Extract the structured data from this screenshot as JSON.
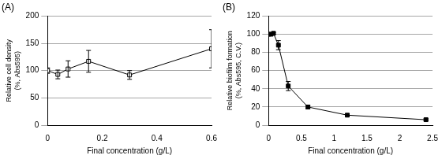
{
  "chart_data": [
    {
      "type": "line",
      "title": "(A)",
      "xlabel": "Final concentration (g/L)",
      "ylabel": [
        "Relative cell density",
        "(%, Abs595)"
      ],
      "x": [
        0,
        0.0375,
        0.075,
        0.15,
        0.3,
        0.6
      ],
      "series": [
        {
          "color": "#000000",
          "marker": "square_open",
          "values": [
            100,
            93,
            103,
            117,
            92,
            140
          ],
          "errors": [
            5,
            8,
            15,
            20,
            8,
            35
          ]
        }
      ],
      "xlim": [
        0,
        0.6
      ],
      "xticks": [
        0,
        0.2,
        0.4,
        0.6
      ],
      "ylim": [
        0,
        200
      ],
      "yticks": [
        0,
        50,
        100,
        150,
        200
      ],
      "grid": true
    },
    {
      "type": "line",
      "title": "(B)",
      "xlabel": "Final concentration (g/L)",
      "ylabel": [
        "Relative biofilm formation",
        "(%, Abs595, C.V.)"
      ],
      "x": [
        0,
        0.0375,
        0.075,
        0.15,
        0.3,
        0.6,
        1.2,
        2.4
      ],
      "series": [
        {
          "color": "#000000",
          "marker": "square",
          "values": [
            100,
            100,
            101,
            88,
            43,
            20,
            11,
            6
          ],
          "errors": [
            1,
            1,
            1,
            5,
            5,
            2,
            1,
            1
          ]
        }
      ],
      "xlim": [
        0,
        2.5
      ],
      "xticks": [
        0,
        0.5,
        1,
        1.5,
        2,
        2.5
      ],
      "ylim": [
        0,
        120
      ],
      "yticks": [
        0,
        20,
        40,
        60,
        80,
        100,
        120
      ],
      "grid": true
    }
  ]
}
